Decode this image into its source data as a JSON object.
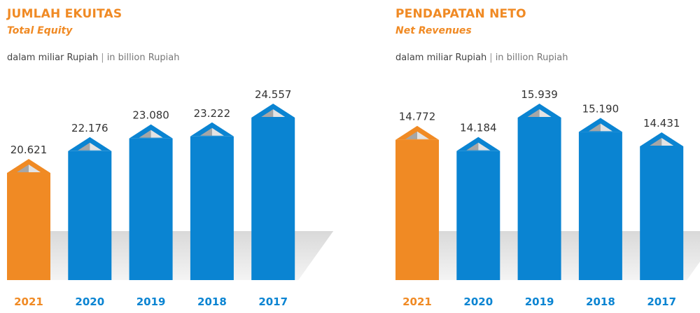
{
  "colors": {
    "accent": "#F08A24",
    "bar": "#0A84D2",
    "label_dark": "#333333"
  },
  "chart_data": [
    {
      "type": "bar",
      "title": "JUMLAH EKUITAS",
      "subtitle": "Total Equity",
      "unit_id": "dalam miliar Rupiah",
      "unit_sep": "|",
      "unit_en": "in billion Rupiah",
      "categories": [
        "2021",
        "2020",
        "2019",
        "2018",
        "2017"
      ],
      "values": [
        20621,
        22176,
        23080,
        23222,
        24557
      ],
      "value_labels": [
        "20.621",
        "22.176",
        "23.080",
        "23.222",
        "24.557"
      ],
      "highlight_category": "2021",
      "ylim": [
        13000,
        24557
      ],
      "grid": false,
      "legend": "none"
    },
    {
      "type": "bar",
      "title": "PENDAPATAN NETO",
      "subtitle": "Net Revenues",
      "unit_id": "dalam miliar Rupiah",
      "unit_sep": "|",
      "unit_en": "in billion Rupiah",
      "categories": [
        "2021",
        "2020",
        "2019",
        "2018",
        "2017"
      ],
      "values": [
        14772,
        14184,
        15939,
        15190,
        14431
      ],
      "value_labels": [
        "14.772",
        "14.184",
        "15.939",
        "15.190",
        "14.431"
      ],
      "highlight_category": "2021",
      "ylim": [
        7400,
        15939
      ],
      "grid": false,
      "legend": "none"
    }
  ]
}
